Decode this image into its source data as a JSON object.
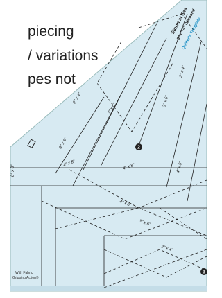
{
  "text_lines": [
    "piecing",
    "/ variations",
    "pes not"
  ],
  "ruler": {
    "title": "Storm at Sea",
    "subtitle": "8\"-6\"-4\" Diamond",
    "brand": "Quilter's Template",
    "size_labels": [
      "2\" x 4\"",
      "3\" x 6\"",
      "4\" x 8\"",
      "3\" x 6\"",
      "4\" x 8\"",
      "4\" x 8\"",
      "3\" x 6\"",
      "2\" x 4\"",
      "3\" x 6\"",
      "2\" x 4\"",
      "4\" x 8\"",
      "8\" x 8\""
    ],
    "markers": [
      "2",
      "3"
    ],
    "footer": [
      "With Fabric",
      "Gripping Action®"
    ]
  }
}
